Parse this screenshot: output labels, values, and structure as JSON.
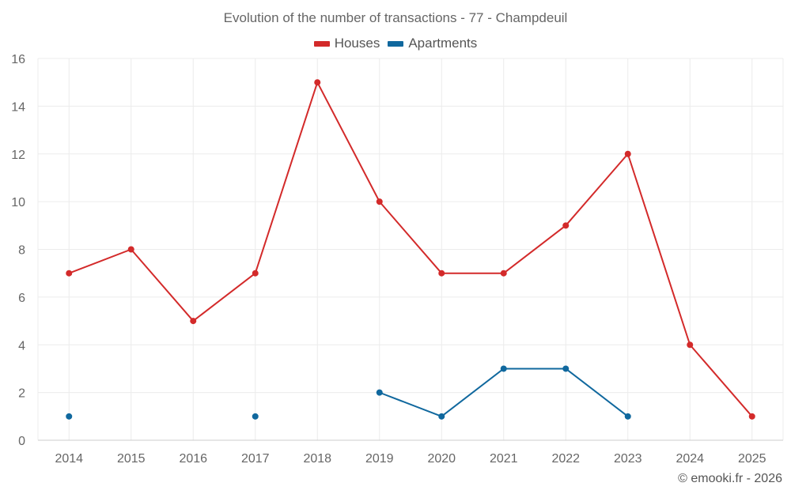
{
  "chart_data": {
    "type": "line",
    "title": "Evolution of the number of transactions - 77 - Champdeuil",
    "categories": [
      "2014",
      "2015",
      "2016",
      "2017",
      "2018",
      "2019",
      "2020",
      "2021",
      "2022",
      "2023",
      "2024",
      "2025"
    ],
    "yticks": [
      "0",
      "2",
      "4",
      "6",
      "8",
      "10",
      "12",
      "14",
      "16"
    ],
    "ylim": [
      0,
      16
    ],
    "xlabel": "",
    "ylabel": "",
    "grid": true,
    "legend_position": "top-center",
    "series": [
      {
        "name": "Houses",
        "color": "#d32a2a",
        "values": [
          7,
          8,
          5,
          7,
          15,
          10,
          7,
          7,
          9,
          12,
          4,
          1
        ]
      },
      {
        "name": "Apartments",
        "color": "#10689e",
        "values": [
          1,
          null,
          null,
          1,
          null,
          2,
          1,
          3,
          3,
          1,
          null,
          null
        ]
      }
    ]
  },
  "footer": {
    "credit": "© emooki.fr - 2026"
  }
}
